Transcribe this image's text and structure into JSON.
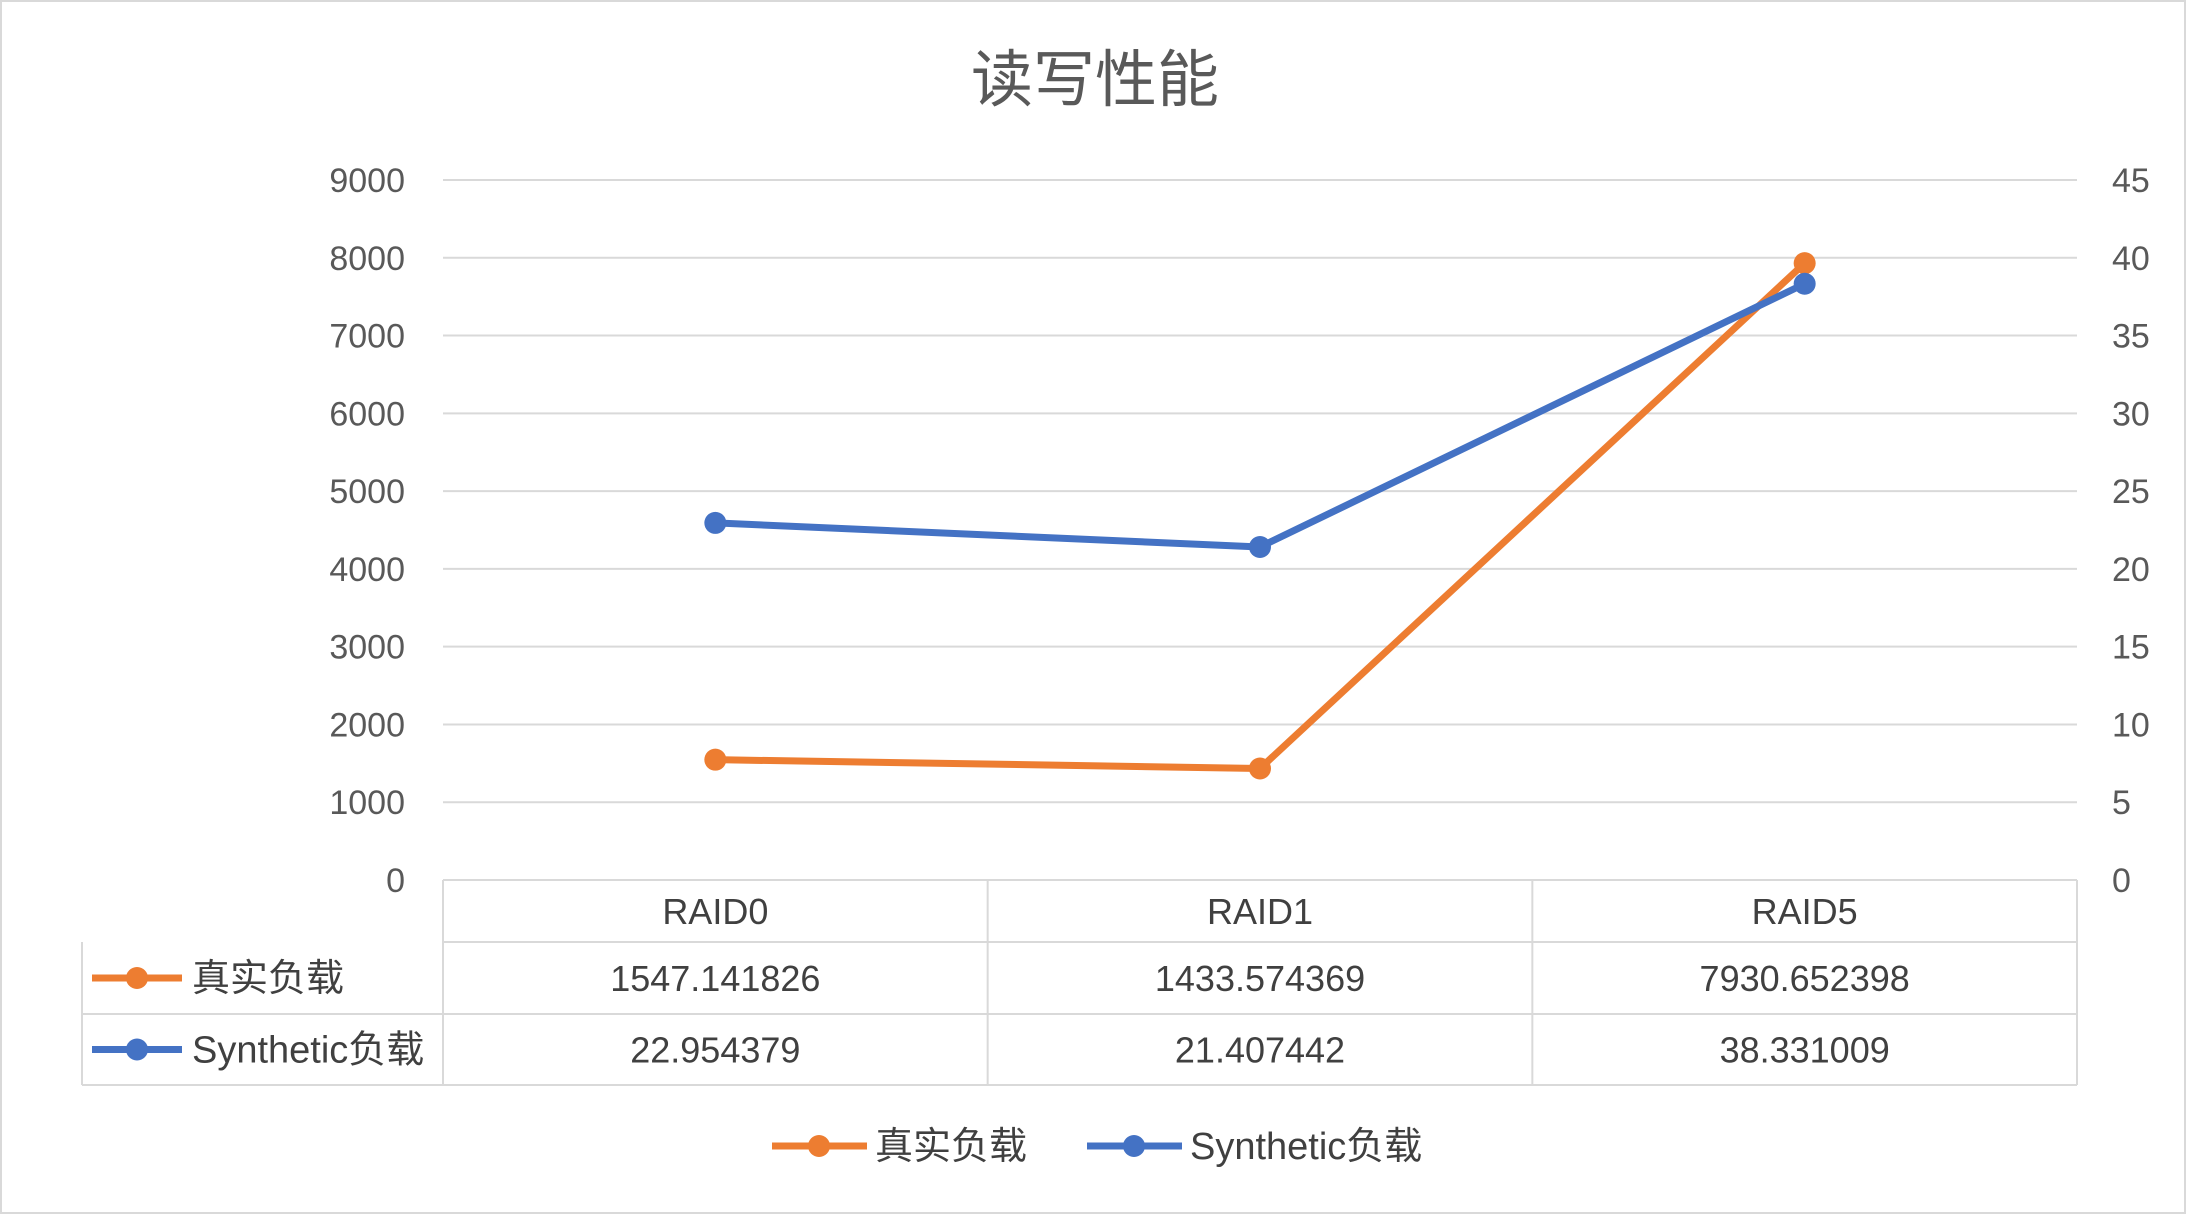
{
  "chart_data": {
    "type": "line",
    "title": "读写性能",
    "categories": [
      "RAID0",
      "RAID1",
      "RAID5"
    ],
    "series": [
      {
        "name": "真实负载",
        "axis": "left",
        "color": "#ED7D31",
        "values": [
          1547.141826,
          1433.574369,
          7930.652398
        ],
        "labels": [
          "1547.141826",
          "1433.574369",
          "7930.652398"
        ]
      },
      {
        "name": "Synthetic负载",
        "axis": "right",
        "color": "#4472C4",
        "values": [
          22.954379,
          21.407442,
          38.331009
        ],
        "labels": [
          "22.954379",
          "21.407442",
          "38.331009"
        ]
      }
    ],
    "y_left": {
      "min": 0,
      "max": 9000,
      "ticks": [
        "0",
        "1000",
        "2000",
        "3000",
        "4000",
        "5000",
        "6000",
        "7000",
        "8000",
        "9000"
      ]
    },
    "y_right": {
      "min": 0,
      "max": 45,
      "ticks": [
        "0",
        "5",
        "10",
        "15",
        "20",
        "25",
        "30",
        "35",
        "40",
        "45"
      ]
    },
    "grid": true,
    "legend_position": "bottom",
    "data_table": true
  },
  "colors": {
    "gridline": "#d9d9d9",
    "text": "#595959"
  }
}
